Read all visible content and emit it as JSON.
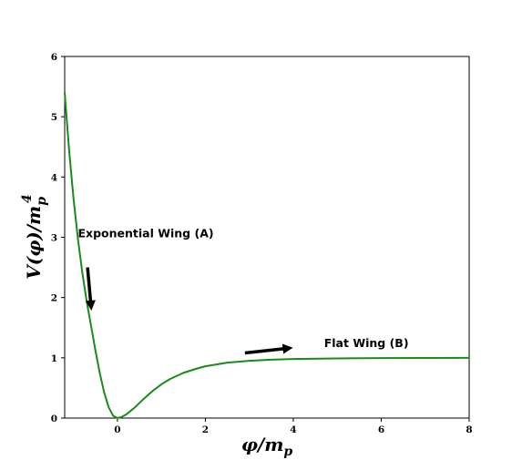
{
  "chart_data": {
    "type": "line",
    "title": "",
    "xlabel_parts": {
      "main": "φ/m",
      "sub": "p"
    },
    "ylabel_parts": {
      "main": "V(φ)/m",
      "sub": "p",
      "sup": "4"
    },
    "xlim": [
      -1.2,
      8
    ],
    "ylim": [
      0,
      6
    ],
    "xticks": [
      0,
      2,
      4,
      6,
      8
    ],
    "yticks": [
      0,
      1,
      2,
      3,
      4,
      5,
      6
    ],
    "grid": false,
    "series": [
      {
        "color": "#1a8a1a",
        "x": [
          -1.2,
          -1.1,
          -1.0,
          -0.9,
          -0.8,
          -0.7,
          -0.6,
          -0.5,
          -0.4,
          -0.3,
          -0.2,
          -0.1,
          0.0,
          0.1,
          0.2,
          0.3,
          0.4,
          0.5,
          0.6,
          0.8,
          1.0,
          1.2,
          1.5,
          1.8,
          2.0,
          2.5,
          3.0,
          3.5,
          4.0,
          5.0,
          6.0,
          7.0,
          8.0
        ],
        "y": [
          5.4,
          4.45,
          3.65,
          2.98,
          2.42,
          1.94,
          1.53,
          1.12,
          0.74,
          0.42,
          0.18,
          0.04,
          0.0,
          0.02,
          0.06,
          0.12,
          0.18,
          0.25,
          0.32,
          0.45,
          0.56,
          0.65,
          0.75,
          0.82,
          0.86,
          0.92,
          0.95,
          0.97,
          0.98,
          0.99,
          0.995,
          0.998,
          1.0
        ]
      }
    ],
    "annotations": [
      {
        "text": "Exponential Wing (A)",
        "x": -0.9,
        "y": 3.0
      },
      {
        "text": "Flat Wing (B)",
        "x": 4.7,
        "y": 1.18
      }
    ],
    "arrows": [
      {
        "from": [
          -0.68,
          2.5
        ],
        "to": [
          -0.6,
          1.85
        ]
      },
      {
        "from": [
          2.9,
          1.08
        ],
        "to": [
          3.9,
          1.16
        ]
      }
    ]
  }
}
